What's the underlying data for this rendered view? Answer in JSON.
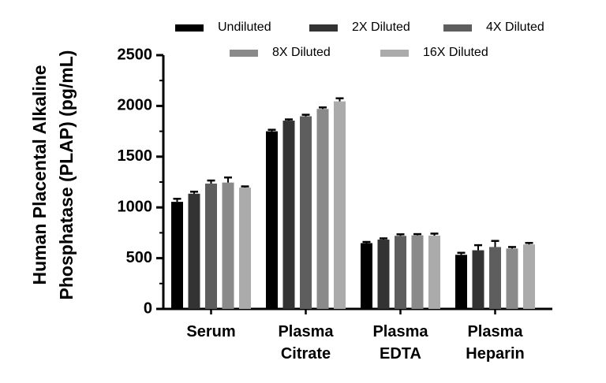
{
  "chart_data": {
    "type": "bar",
    "title": "",
    "xlabel": "",
    "ylabel_lines": [
      "Human Placental Alkaline",
      "Phosphatase (PLAP) (pg/mL)"
    ],
    "ylim": [
      0,
      2500
    ],
    "yticks": [
      0,
      500,
      1000,
      1500,
      2000,
      2500
    ],
    "categories": [
      {
        "lines": [
          "Serum"
        ]
      },
      {
        "lines": [
          "Plasma",
          "Citrate"
        ]
      },
      {
        "lines": [
          "Plasma",
          "EDTA"
        ]
      },
      {
        "lines": [
          "Plasma",
          "Heparin"
        ]
      }
    ],
    "series": [
      {
        "name": "Undiluted",
        "color": "#000000",
        "values": [
          1055,
          1750,
          648,
          533
        ],
        "errors": [
          30,
          15,
          12,
          20
        ]
      },
      {
        "name": "2X Diluted",
        "color": "#333333",
        "values": [
          1135,
          1855,
          683,
          578
        ],
        "errors": [
          20,
          12,
          12,
          50
        ]
      },
      {
        "name": "4X Diluted",
        "color": "#5e5e5e",
        "values": [
          1235,
          1898,
          720,
          610
        ],
        "errors": [
          30,
          15,
          15,
          60
        ]
      },
      {
        "name": "8X Diluted",
        "color": "#8a8a8a",
        "values": [
          1245,
          1970,
          725,
          595
        ],
        "errors": [
          50,
          15,
          12,
          15
        ]
      },
      {
        "name": "16X Diluted",
        "color": "#ababab",
        "values": [
          1195,
          2045,
          722,
          635
        ],
        "errors": [
          12,
          30,
          20,
          15
        ]
      }
    ],
    "legend_position": "top",
    "grid": false
  }
}
